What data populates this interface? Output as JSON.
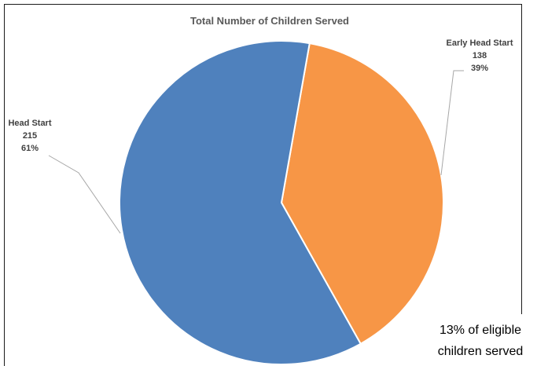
{
  "chart_data": {
    "type": "pie",
    "title": "Total Number of Children Served",
    "slices": [
      {
        "label": "Early Head Start",
        "value": 138,
        "percent": "39%",
        "color": "#f79646"
      },
      {
        "label": "Head Start",
        "value": 215,
        "percent": "61%",
        "color": "#4f81bd"
      }
    ],
    "annotation": [
      "13% of eligible",
      "children served"
    ]
  }
}
